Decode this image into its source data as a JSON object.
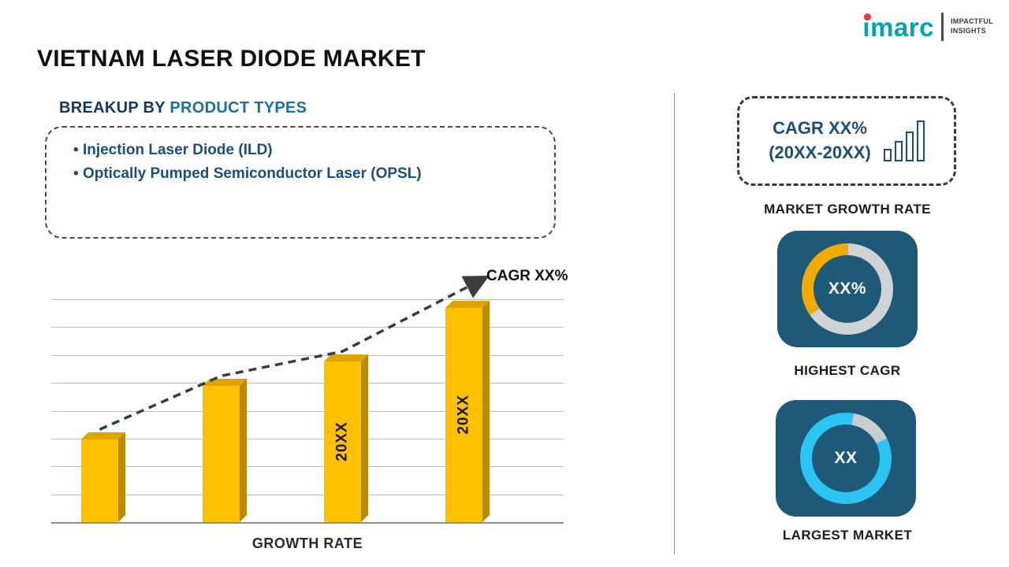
{
  "logo": {
    "brand": "imarc",
    "tagline_line1": "IMPACTFUL",
    "tagline_line2": "INSIGHTS",
    "brand_color": "#00A4B4",
    "dot_color": "#E23B3F"
  },
  "header": {
    "title": "VIETNAM LASER DIODE MARKET"
  },
  "breakup": {
    "heading_prefix": "BREAKUP BY",
    "heading_highlight": "PRODUCT TYPES",
    "items": [
      "Injection Laser Diode (ILD)",
      "Optically Pumped Semiconductor Laser (OPSL)"
    ]
  },
  "chart_data": {
    "type": "bar",
    "categories": [
      "",
      "",
      "20XX",
      "20XX"
    ],
    "bar_labels": [
      "",
      "",
      "20XX",
      "20XX"
    ],
    "values": [
      37,
      61,
      72,
      96
    ],
    "ylim": [
      0,
      100
    ],
    "title": "",
    "xlabel": "GROWTH RATE",
    "ylabel": "",
    "trend_label": "CAGR XX%",
    "bar_color": "#FFC000",
    "bar_top_color": "#DFA400",
    "bar_side_color": "#BC8A00",
    "trend_color": "#3C3C3C",
    "grid": true,
    "legend": "none"
  },
  "sidebar": {
    "cagr_box": {
      "line1": "CAGR XX%",
      "line2": "(20XX-20XX)"
    },
    "market_growth_label": "MARKET GROWTH RATE",
    "highest_cagr": {
      "value": "XX%",
      "label": "HIGHEST CAGR",
      "ring_color": "#F2A900",
      "track_color": "#CFD3D6",
      "fill_percent": 35
    },
    "largest_market": {
      "value": "XX",
      "label": "LARGEST MARKET",
      "ring_color": "#2BC4F3",
      "track_color": "#C9CDD0",
      "fill_percent": 85
    },
    "tile_color": "#1F5978"
  }
}
